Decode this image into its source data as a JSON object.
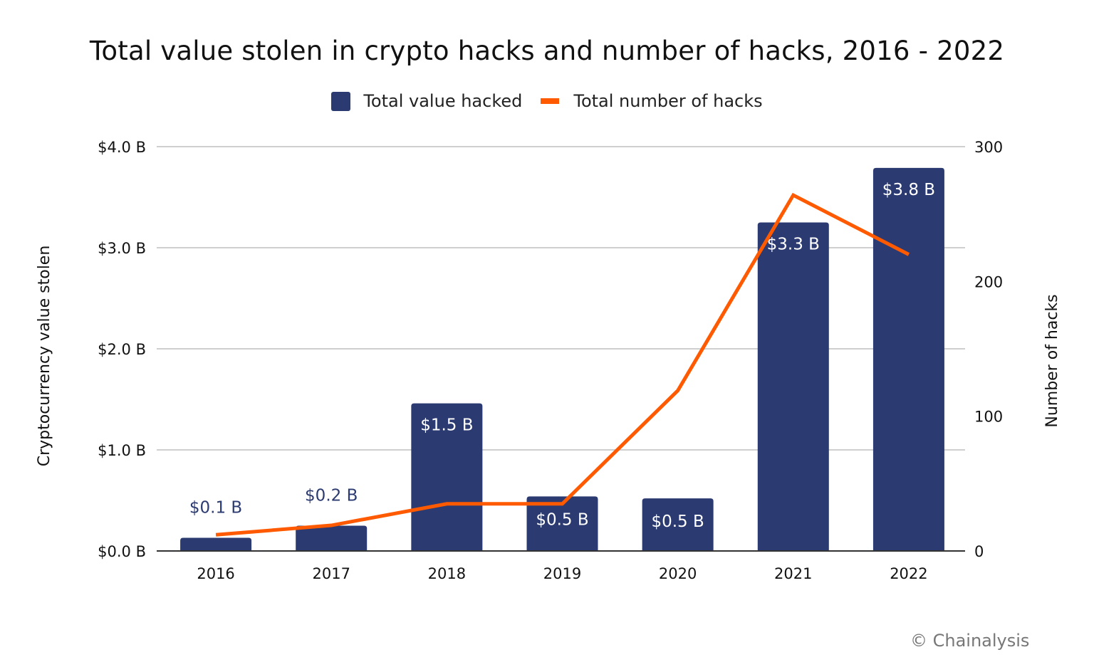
{
  "title": "Total value stolen in crypto hacks and number of hacks, 2016 - 2022",
  "legend": [
    {
      "label": "Total value hacked",
      "color": "#2b3a70",
      "kind": "bar"
    },
    {
      "label": "Total number of hacks",
      "color": "#ff5a00",
      "kind": "line"
    }
  ],
  "credit": "© Chainalysis",
  "axes": {
    "left_title": "Cryptocurrency value stolen",
    "right_title": "Number of hacks",
    "left_ticks": [
      "$0.0 B",
      "$1.0 B",
      "$2.0 B",
      "$3.0 B",
      "$4.0 B"
    ],
    "right_ticks": [
      "0",
      "100",
      "200",
      "300"
    ]
  },
  "chart_data": {
    "type": "bar",
    "title": "Total value stolen in crypto hacks and number of hacks, 2016 - 2022",
    "categories": [
      "2016",
      "2017",
      "2018",
      "2019",
      "2020",
      "2021",
      "2022"
    ],
    "series": [
      {
        "name": "Total value hacked",
        "type": "bar",
        "axis": "left",
        "unit": "USD billions",
        "values": [
          0.13,
          0.25,
          1.46,
          0.54,
          0.52,
          3.25,
          3.79
        ],
        "labels": [
          "$0.1 B",
          "$0.2 B",
          "$1.5 B",
          "$0.5 B",
          "$0.5 B",
          "$3.3 B",
          "$3.8 B"
        ],
        "color": "#2b3a70"
      },
      {
        "name": "Total number of hacks",
        "type": "line",
        "axis": "right",
        "values": [
          12,
          19,
          35,
          35,
          119,
          264,
          220
        ],
        "color": "#ff5a00"
      }
    ],
    "xlabel": "",
    "ylabel": "Cryptocurrency value stolen",
    "y2label": "Number of hacks",
    "ylim": [
      0,
      4.0
    ],
    "y2lim": [
      0,
      300
    ],
    "grid": true,
    "legend_position": "top"
  }
}
